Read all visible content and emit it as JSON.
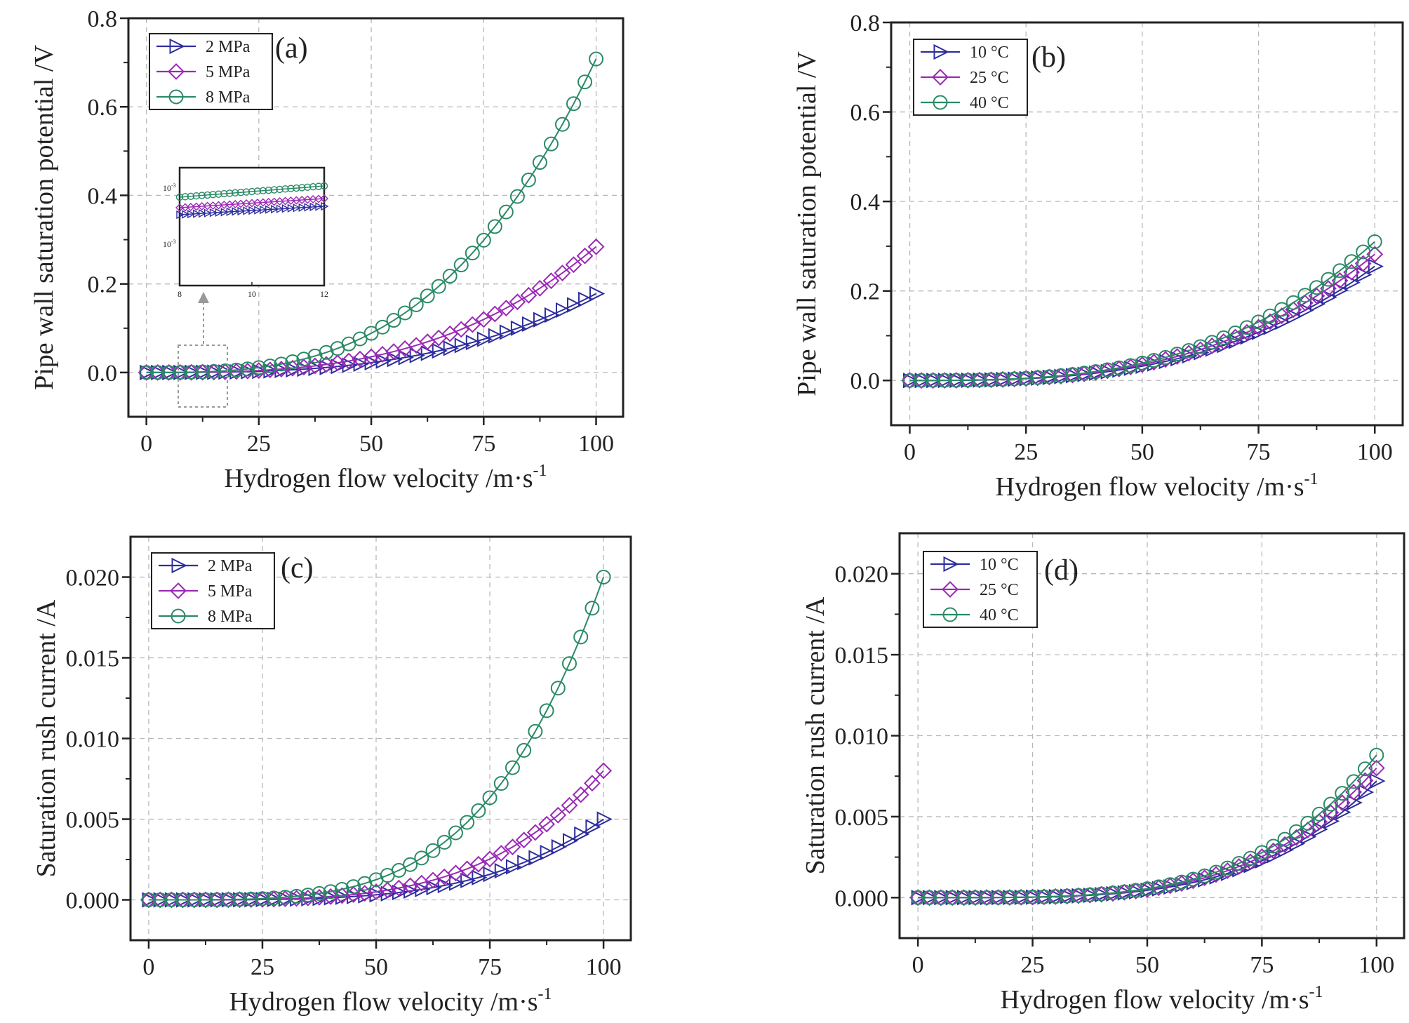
{
  "colors": {
    "blue": "#2e2e9e",
    "purple": "#9a2ab5",
    "green": "#2a8a66",
    "grid": "#b8b8b8",
    "frame": "#222222"
  },
  "chart_data": [
    {
      "type": "line",
      "panel": "(a)",
      "xlabel": "Hydrogen flow velocity /m·s",
      "xlabel_sup": "-1",
      "ylabel": "Pipe wall saturation potential /V",
      "xlim": [
        -4,
        106
      ],
      "ylim": [
        -0.1,
        0.8
      ],
      "xticks": [
        0,
        25,
        50,
        75,
        100
      ],
      "xtick_labels": [
        "0",
        "25",
        "50",
        "75",
        "100"
      ],
      "yticks": [
        0.0,
        0.2,
        0.4,
        0.6,
        0.8
      ],
      "ytick_labels": [
        "0.0",
        "0.2",
        "0.4",
        "0.6",
        "0.8"
      ],
      "grid": true,
      "legend": "top-left",
      "x": [
        0,
        2.5,
        5,
        7.5,
        10,
        12.5,
        15,
        17.5,
        20,
        22.5,
        25,
        27.5,
        30,
        32.5,
        35,
        37.5,
        40,
        42.5,
        45,
        47.5,
        50,
        52.5,
        55,
        57.5,
        60,
        62.5,
        65,
        67.5,
        70,
        72.5,
        75,
        77.5,
        80,
        82.5,
        85,
        87.5,
        90,
        92.5,
        95,
        97.5,
        100
      ],
      "series": [
        {
          "name": "2 MPa",
          "marker": "triangle-right",
          "color": "blue",
          "endpoint": 0.178,
          "exponent": 3.0
        },
        {
          "name": "5 MPa",
          "marker": "diamond",
          "color": "purple",
          "endpoint": 0.284,
          "exponent": 3.0
        },
        {
          "name": "8 MPa",
          "marker": "circle",
          "color": "green",
          "endpoint": 0.708,
          "exponent": 3.0
        }
      ],
      "inset": {
        "xlim": [
          8,
          12
        ],
        "xticks": [
          8,
          10,
          12
        ],
        "xtick_labels": [
          "8",
          "10",
          "12"
        ],
        "y_exponent_labels": [
          "10",
          "10"
        ],
        "y_exponent_sups": [
          "-3",
          "-3"
        ]
      }
    },
    {
      "type": "line",
      "panel": "(b)",
      "xlabel": "Hydrogen flow velocity /m·s",
      "xlabel_sup": "-1",
      "ylabel": "Pipe wall saturation potential /V",
      "xlim": [
        -4,
        106
      ],
      "ylim": [
        -0.1,
        0.8
      ],
      "xticks": [
        0,
        25,
        50,
        75,
        100
      ],
      "xtick_labels": [
        "0",
        "25",
        "50",
        "75",
        "100"
      ],
      "yticks": [
        0.0,
        0.2,
        0.4,
        0.6,
        0.8
      ],
      "ytick_labels": [
        "0.0",
        "0.2",
        "0.4",
        "0.6",
        "0.8"
      ],
      "grid": true,
      "legend": "top-left",
      "x": [
        0,
        2.5,
        5,
        7.5,
        10,
        12.5,
        15,
        17.5,
        20,
        22.5,
        25,
        27.5,
        30,
        32.5,
        35,
        37.5,
        40,
        42.5,
        45,
        47.5,
        50,
        52.5,
        55,
        57.5,
        60,
        62.5,
        65,
        67.5,
        70,
        72.5,
        75,
        77.5,
        80,
        82.5,
        85,
        87.5,
        90,
        92.5,
        95,
        97.5,
        100
      ],
      "series": [
        {
          "name": "10 °C",
          "marker": "triangle-right",
          "color": "blue",
          "endpoint": 0.255,
          "exponent": 3.0
        },
        {
          "name": "25 °C",
          "marker": "diamond",
          "color": "purple",
          "endpoint": 0.282,
          "exponent": 3.0
        },
        {
          "name": "40 °C",
          "marker": "circle",
          "color": "green",
          "endpoint": 0.31,
          "exponent": 3.0
        }
      ]
    },
    {
      "type": "line",
      "panel": "(c)",
      "xlabel": "Hydrogen flow velocity /m·s",
      "xlabel_sup": "-1",
      "ylabel": "Saturation rush current /A",
      "xlim": [
        -4,
        106
      ],
      "ylim": [
        -0.0025,
        0.0225
      ],
      "xticks": [
        0,
        25,
        50,
        75,
        100
      ],
      "xtick_labels": [
        "0",
        "25",
        "50",
        "75",
        "100"
      ],
      "yticks": [
        0.0,
        0.005,
        0.01,
        0.015,
        0.02
      ],
      "ytick_labels": [
        "0.000",
        "0.005",
        "0.010",
        "0.015",
        "0.020"
      ],
      "grid": true,
      "legend": "top-left",
      "x": [
        0,
        2.5,
        5,
        7.5,
        10,
        12.5,
        15,
        17.5,
        20,
        22.5,
        25,
        27.5,
        30,
        32.5,
        35,
        37.5,
        40,
        42.5,
        45,
        47.5,
        50,
        52.5,
        55,
        57.5,
        60,
        62.5,
        65,
        67.5,
        70,
        72.5,
        75,
        77.5,
        80,
        82.5,
        85,
        87.5,
        90,
        92.5,
        95,
        97.5,
        100
      ],
      "series": [
        {
          "name": "2 MPa",
          "marker": "triangle-right",
          "color": "blue",
          "endpoint": 0.005,
          "exponent": 4.0
        },
        {
          "name": "5 MPa",
          "marker": "diamond",
          "color": "purple",
          "endpoint": 0.008,
          "exponent": 4.0
        },
        {
          "name": "8 MPa",
          "marker": "circle",
          "color": "green",
          "endpoint": 0.02,
          "exponent": 4.0
        }
      ]
    },
    {
      "type": "line",
      "panel": "(d)",
      "xlabel": "Hydrogen flow velocity /m·s",
      "xlabel_sup": "-1",
      "ylabel": "Saturation rush current /A",
      "xlim": [
        -4,
        106
      ],
      "ylim": [
        -0.0025,
        0.0225
      ],
      "xticks": [
        0,
        25,
        50,
        75,
        100
      ],
      "xtick_labels": [
        "0",
        "25",
        "50",
        "75",
        "100"
      ],
      "yticks": [
        0.0,
        0.005,
        0.01,
        0.015,
        0.02
      ],
      "ytick_labels": [
        "0.000",
        "0.005",
        "0.010",
        "0.015",
        "0.020"
      ],
      "grid": true,
      "legend": "top-left",
      "x": [
        0,
        2.5,
        5,
        7.5,
        10,
        12.5,
        15,
        17.5,
        20,
        22.5,
        25,
        27.5,
        30,
        32.5,
        35,
        37.5,
        40,
        42.5,
        45,
        47.5,
        50,
        52.5,
        55,
        57.5,
        60,
        62.5,
        65,
        67.5,
        70,
        72.5,
        75,
        77.5,
        80,
        82.5,
        85,
        87.5,
        90,
        92.5,
        95,
        97.5,
        100
      ],
      "series": [
        {
          "name": "10 °C",
          "marker": "triangle-right",
          "color": "blue",
          "endpoint": 0.0072,
          "exponent": 4.0
        },
        {
          "name": "25 °C",
          "marker": "diamond",
          "color": "purple",
          "endpoint": 0.008,
          "exponent": 4.0
        },
        {
          "name": "40 °C",
          "marker": "circle",
          "color": "green",
          "endpoint": 0.0088,
          "exponent": 4.0
        }
      ]
    }
  ]
}
